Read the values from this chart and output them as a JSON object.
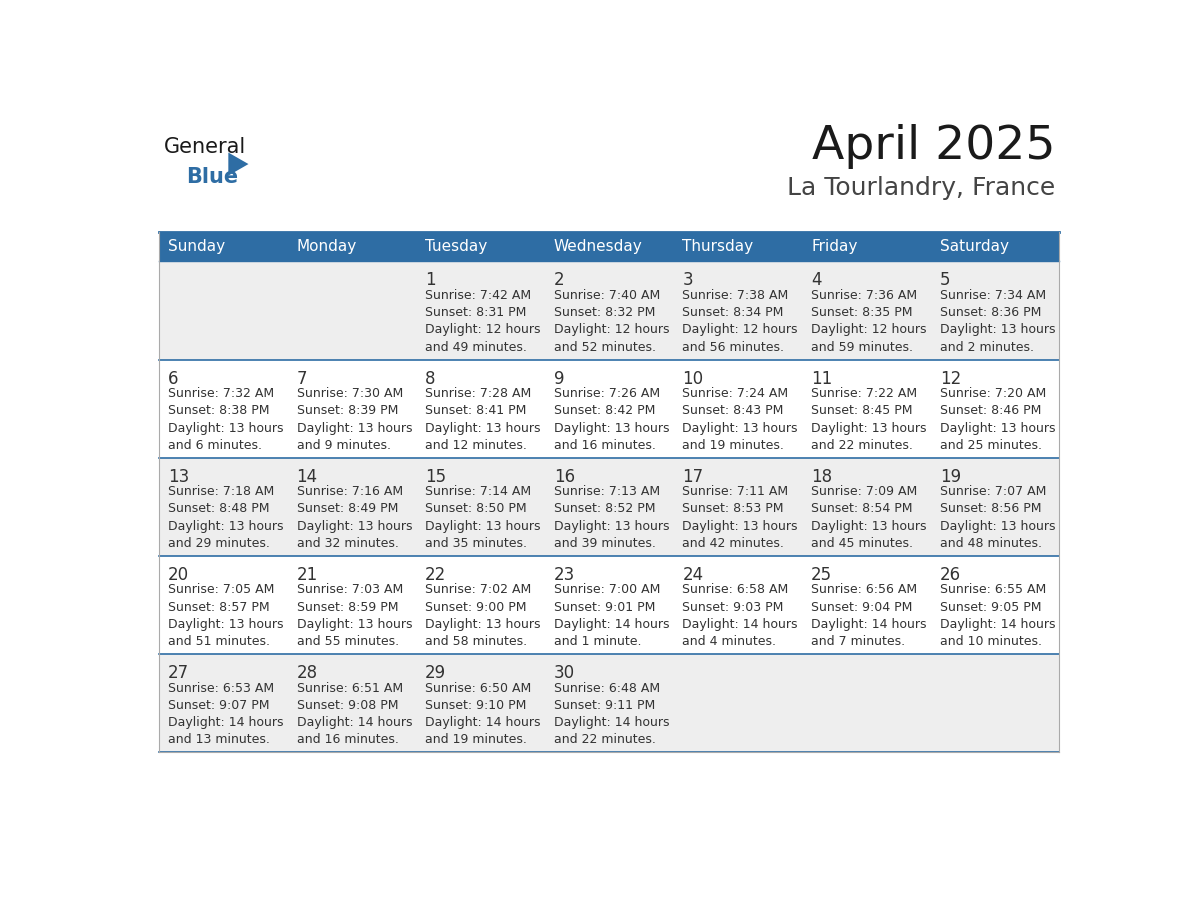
{
  "title": "April 2025",
  "subtitle": "La Tourlandry, France",
  "header_bg": "#2E6DA4",
  "header_text_color": "#FFFFFF",
  "day_names": [
    "Sunday",
    "Monday",
    "Tuesday",
    "Wednesday",
    "Thursday",
    "Friday",
    "Saturday"
  ],
  "row_bg_odd": "#EEEEEE",
  "row_bg_even": "#FFFFFF",
  "separator_color": "#2E6DA4",
  "cell_text_color": "#333333",
  "days": [
    {
      "day": null,
      "col": 0,
      "row": 0
    },
    {
      "day": null,
      "col": 1,
      "row": 0
    },
    {
      "day": 1,
      "col": 2,
      "row": 0,
      "sunrise": "7:42 AM",
      "sunset": "8:31 PM",
      "daylight_a": "12 hours",
      "daylight_b": "and 49 minutes."
    },
    {
      "day": 2,
      "col": 3,
      "row": 0,
      "sunrise": "7:40 AM",
      "sunset": "8:32 PM",
      "daylight_a": "12 hours",
      "daylight_b": "and 52 minutes."
    },
    {
      "day": 3,
      "col": 4,
      "row": 0,
      "sunrise": "7:38 AM",
      "sunset": "8:34 PM",
      "daylight_a": "12 hours",
      "daylight_b": "and 56 minutes."
    },
    {
      "day": 4,
      "col": 5,
      "row": 0,
      "sunrise": "7:36 AM",
      "sunset": "8:35 PM",
      "daylight_a": "12 hours",
      "daylight_b": "and 59 minutes."
    },
    {
      "day": 5,
      "col": 6,
      "row": 0,
      "sunrise": "7:34 AM",
      "sunset": "8:36 PM",
      "daylight_a": "13 hours",
      "daylight_b": "and 2 minutes."
    },
    {
      "day": 6,
      "col": 0,
      "row": 1,
      "sunrise": "7:32 AM",
      "sunset": "8:38 PM",
      "daylight_a": "13 hours",
      "daylight_b": "and 6 minutes."
    },
    {
      "day": 7,
      "col": 1,
      "row": 1,
      "sunrise": "7:30 AM",
      "sunset": "8:39 PM",
      "daylight_a": "13 hours",
      "daylight_b": "and 9 minutes."
    },
    {
      "day": 8,
      "col": 2,
      "row": 1,
      "sunrise": "7:28 AM",
      "sunset": "8:41 PM",
      "daylight_a": "13 hours",
      "daylight_b": "and 12 minutes."
    },
    {
      "day": 9,
      "col": 3,
      "row": 1,
      "sunrise": "7:26 AM",
      "sunset": "8:42 PM",
      "daylight_a": "13 hours",
      "daylight_b": "and 16 minutes."
    },
    {
      "day": 10,
      "col": 4,
      "row": 1,
      "sunrise": "7:24 AM",
      "sunset": "8:43 PM",
      "daylight_a": "13 hours",
      "daylight_b": "and 19 minutes."
    },
    {
      "day": 11,
      "col": 5,
      "row": 1,
      "sunrise": "7:22 AM",
      "sunset": "8:45 PM",
      "daylight_a": "13 hours",
      "daylight_b": "and 22 minutes."
    },
    {
      "day": 12,
      "col": 6,
      "row": 1,
      "sunrise": "7:20 AM",
      "sunset": "8:46 PM",
      "daylight_a": "13 hours",
      "daylight_b": "and 25 minutes."
    },
    {
      "day": 13,
      "col": 0,
      "row": 2,
      "sunrise": "7:18 AM",
      "sunset": "8:48 PM",
      "daylight_a": "13 hours",
      "daylight_b": "and 29 minutes."
    },
    {
      "day": 14,
      "col": 1,
      "row": 2,
      "sunrise": "7:16 AM",
      "sunset": "8:49 PM",
      "daylight_a": "13 hours",
      "daylight_b": "and 32 minutes."
    },
    {
      "day": 15,
      "col": 2,
      "row": 2,
      "sunrise": "7:14 AM",
      "sunset": "8:50 PM",
      "daylight_a": "13 hours",
      "daylight_b": "and 35 minutes."
    },
    {
      "day": 16,
      "col": 3,
      "row": 2,
      "sunrise": "7:13 AM",
      "sunset": "8:52 PM",
      "daylight_a": "13 hours",
      "daylight_b": "and 39 minutes."
    },
    {
      "day": 17,
      "col": 4,
      "row": 2,
      "sunrise": "7:11 AM",
      "sunset": "8:53 PM",
      "daylight_a": "13 hours",
      "daylight_b": "and 42 minutes."
    },
    {
      "day": 18,
      "col": 5,
      "row": 2,
      "sunrise": "7:09 AM",
      "sunset": "8:54 PM",
      "daylight_a": "13 hours",
      "daylight_b": "and 45 minutes."
    },
    {
      "day": 19,
      "col": 6,
      "row": 2,
      "sunrise": "7:07 AM",
      "sunset": "8:56 PM",
      "daylight_a": "13 hours",
      "daylight_b": "and 48 minutes."
    },
    {
      "day": 20,
      "col": 0,
      "row": 3,
      "sunrise": "7:05 AM",
      "sunset": "8:57 PM",
      "daylight_a": "13 hours",
      "daylight_b": "and 51 minutes."
    },
    {
      "day": 21,
      "col": 1,
      "row": 3,
      "sunrise": "7:03 AM",
      "sunset": "8:59 PM",
      "daylight_a": "13 hours",
      "daylight_b": "and 55 minutes."
    },
    {
      "day": 22,
      "col": 2,
      "row": 3,
      "sunrise": "7:02 AM",
      "sunset": "9:00 PM",
      "daylight_a": "13 hours",
      "daylight_b": "and 58 minutes."
    },
    {
      "day": 23,
      "col": 3,
      "row": 3,
      "sunrise": "7:00 AM",
      "sunset": "9:01 PM",
      "daylight_a": "14 hours",
      "daylight_b": "and 1 minute."
    },
    {
      "day": 24,
      "col": 4,
      "row": 3,
      "sunrise": "6:58 AM",
      "sunset": "9:03 PM",
      "daylight_a": "14 hours",
      "daylight_b": "and 4 minutes."
    },
    {
      "day": 25,
      "col": 5,
      "row": 3,
      "sunrise": "6:56 AM",
      "sunset": "9:04 PM",
      "daylight_a": "14 hours",
      "daylight_b": "and 7 minutes."
    },
    {
      "day": 26,
      "col": 6,
      "row": 3,
      "sunrise": "6:55 AM",
      "sunset": "9:05 PM",
      "daylight_a": "14 hours",
      "daylight_b": "and 10 minutes."
    },
    {
      "day": 27,
      "col": 0,
      "row": 4,
      "sunrise": "6:53 AM",
      "sunset": "9:07 PM",
      "daylight_a": "14 hours",
      "daylight_b": "and 13 minutes."
    },
    {
      "day": 28,
      "col": 1,
      "row": 4,
      "sunrise": "6:51 AM",
      "sunset": "9:08 PM",
      "daylight_a": "14 hours",
      "daylight_b": "and 16 minutes."
    },
    {
      "day": 29,
      "col": 2,
      "row": 4,
      "sunrise": "6:50 AM",
      "sunset": "9:10 PM",
      "daylight_a": "14 hours",
      "daylight_b": "and 19 minutes."
    },
    {
      "day": 30,
      "col": 3,
      "row": 4,
      "sunrise": "6:48 AM",
      "sunset": "9:11 PM",
      "daylight_a": "14 hours",
      "daylight_b": "and 22 minutes."
    },
    {
      "day": null,
      "col": 4,
      "row": 4
    },
    {
      "day": null,
      "col": 5,
      "row": 4
    },
    {
      "day": null,
      "col": 6,
      "row": 4
    }
  ],
  "logo_text_general": "General",
  "logo_text_blue": "Blue",
  "logo_general_color": "#1a1a1a",
  "logo_blue_color": "#2E6DA4",
  "logo_triangle_color": "#2E6DA4",
  "fig_width": 11.88,
  "fig_height": 9.18,
  "title_fontsize": 34,
  "subtitle_fontsize": 18,
  "header_fontsize": 11,
  "day_num_fontsize": 12,
  "cell_fontsize": 9
}
